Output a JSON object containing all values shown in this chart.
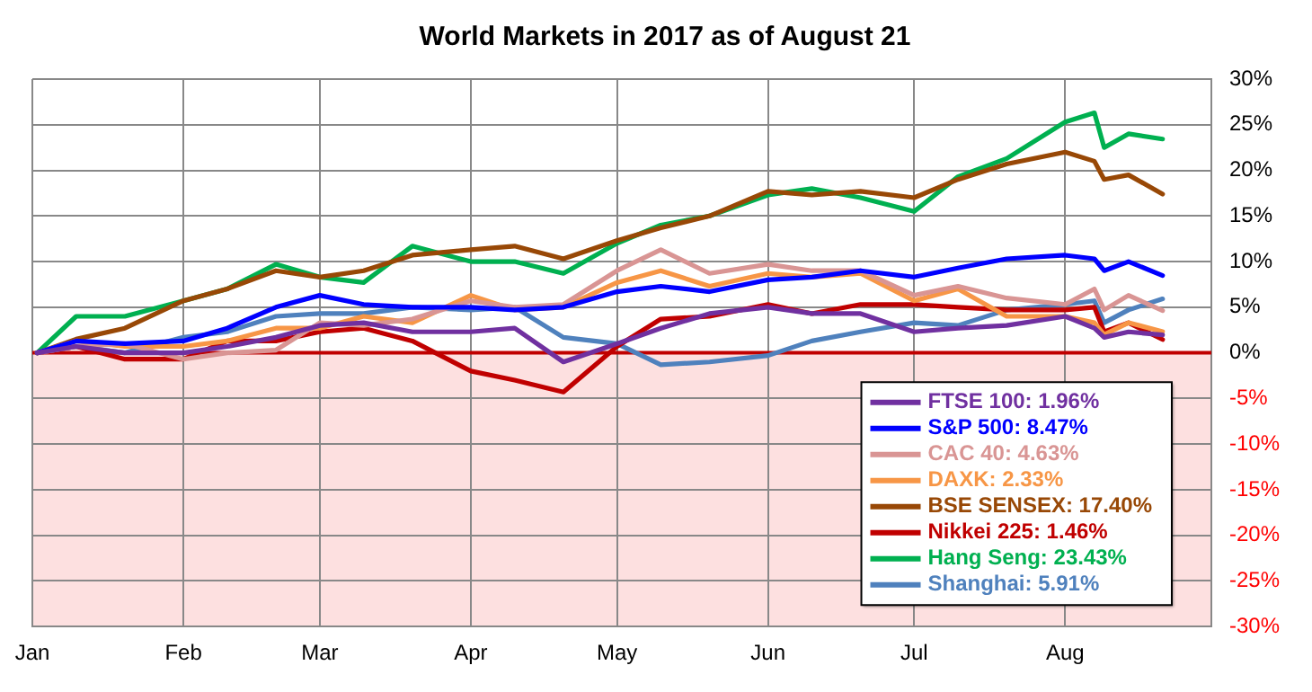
{
  "chart_data": {
    "type": "line",
    "title": "World Markets in 2017 as of August 21",
    "x": [
      "2017-01-02",
      "2017-01-10",
      "2017-01-20",
      "2017-02-01",
      "2017-02-10",
      "2017-02-20",
      "2017-03-01",
      "2017-03-10",
      "2017-03-20",
      "2017-04-01",
      "2017-04-10",
      "2017-04-20",
      "2017-05-01",
      "2017-05-10",
      "2017-05-20",
      "2017-06-01",
      "2017-06-10",
      "2017-06-20",
      "2017-07-01",
      "2017-07-10",
      "2017-07-20",
      "2017-08-01",
      "2017-08-07",
      "2017-08-09",
      "2017-08-14",
      "2017-08-21"
    ],
    "series": [
      {
        "name": "FTSE 100: 1.96%",
        "color": "#7030a0",
        "values": [
          0,
          0.7,
          0,
          0,
          0.7,
          1.7,
          3,
          3.3,
          2.3,
          2.3,
          2.7,
          -1,
          1,
          2.7,
          4.3,
          5,
          4.3,
          4.3,
          2.3,
          2.7,
          3,
          4,
          2.7,
          1.7,
          2.3,
          1.96
        ]
      },
      {
        "name": "S&P 500: 8.47%",
        "color": "#0000ff",
        "values": [
          0,
          1.3,
          1,
          1.3,
          2.7,
          5,
          6.3,
          5.3,
          5,
          5,
          4.7,
          5,
          6.7,
          7.3,
          6.7,
          8,
          8.3,
          9,
          8.3,
          9.3,
          10.3,
          10.7,
          10.3,
          9,
          10,
          8.47
        ]
      },
      {
        "name": "CAC 40: 4.63%",
        "color": "#d99594",
        "values": [
          0,
          0.7,
          1,
          -0.7,
          0,
          0.3,
          3.3,
          3,
          3.7,
          5.7,
          5,
          5.3,
          9,
          11.3,
          8.7,
          9.7,
          9,
          9,
          6.3,
          7.3,
          6,
          5.3,
          7,
          4.7,
          6.3,
          4.63
        ]
      },
      {
        "name": "DAXK: 2.33%",
        "color": "#f79646",
        "values": [
          0,
          1.3,
          0.7,
          0.7,
          1.3,
          2.7,
          2.7,
          4,
          3.3,
          6.3,
          4.7,
          5,
          7.7,
          9,
          7.3,
          8.7,
          8.3,
          8.7,
          5.7,
          7,
          4,
          4,
          3.3,
          2,
          3.3,
          2.33
        ]
      },
      {
        "name": "BSE SENSEX: 17.40%",
        "color": "#984806",
        "values": [
          0,
          1.5,
          2.7,
          5.7,
          7,
          9,
          8.3,
          9,
          10.7,
          11.3,
          11.7,
          10.3,
          12.3,
          13.7,
          15,
          17.7,
          17.3,
          17.7,
          17,
          19,
          20.7,
          22,
          21,
          19,
          19.5,
          17.4
        ]
      },
      {
        "name": "Nikkei 225: 1.46%",
        "color": "#c00000",
        "values": [
          0,
          0.7,
          -0.7,
          -0.7,
          1.3,
          1.3,
          2.3,
          2.7,
          1.3,
          -2,
          -3,
          -4.3,
          0.7,
          3.7,
          4,
          5.3,
          4.3,
          5.3,
          5.3,
          5,
          4.7,
          4.7,
          5,
          2.3,
          3.3,
          1.46
        ]
      },
      {
        "name": "Hang Seng: 23.43%",
        "color": "#00b050",
        "values": [
          0,
          4,
          4,
          5.7,
          7,
          9.7,
          8.3,
          7.7,
          11.7,
          10,
          10,
          8.7,
          12,
          14,
          15,
          17.3,
          18,
          17,
          15.5,
          19.3,
          21.3,
          25.3,
          26.3,
          22.5,
          24,
          23.43
        ]
      },
      {
        "name": "Shanghai: 5.91%",
        "color": "#4f81bd",
        "values": [
          0,
          0.7,
          0,
          1.7,
          2.3,
          4,
          4.3,
          4.3,
          5,
          4.7,
          5,
          1.7,
          1,
          -1.3,
          -1,
          -0.3,
          1.3,
          2.3,
          3.3,
          3,
          4.7,
          5.3,
          5.7,
          3.3,
          4.7,
          5.91
        ]
      }
    ],
    "xlim": [
      "2017-01-01",
      "2017-08-31"
    ],
    "xticks": [
      {
        "value": "2017-01-01",
        "label": "Jan"
      },
      {
        "value": "2017-02-01",
        "label": "Feb"
      },
      {
        "value": "2017-03-01",
        "label": "Mar"
      },
      {
        "value": "2017-04-01",
        "label": "Apr"
      },
      {
        "value": "2017-05-01",
        "label": "May"
      },
      {
        "value": "2017-06-01",
        "label": "Jun"
      },
      {
        "value": "2017-07-01",
        "label": "Jul"
      },
      {
        "value": "2017-08-01",
        "label": "Aug"
      }
    ],
    "ylim": [
      -30,
      30
    ],
    "yticks": [
      {
        "value": -30,
        "label": "-30%"
      },
      {
        "value": -25,
        "label": "-25%"
      },
      {
        "value": -20,
        "label": "-20%"
      },
      {
        "value": -15,
        "label": "-15%"
      },
      {
        "value": -10,
        "label": "-10%"
      },
      {
        "value": -5,
        "label": "-5%"
      },
      {
        "value": 0,
        "label": "0%"
      },
      {
        "value": 5,
        "label": "5%"
      },
      {
        "value": 10,
        "label": "10%"
      },
      {
        "value": 15,
        "label": "15%"
      },
      {
        "value": 20,
        "label": "20%"
      },
      {
        "value": 25,
        "label": "25%"
      },
      {
        "value": 30,
        "label": "30%"
      }
    ],
    "bands": [
      {
        "axis": "y",
        "from": -30,
        "to": 0,
        "color": "#fde0e0"
      }
    ],
    "ref_lines": [
      {
        "axis": "y",
        "value": 0,
        "color": "#c00000"
      }
    ],
    "grid": true,
    "legend": "bottom right",
    "marker": "none",
    "line_style": "solid"
  }
}
